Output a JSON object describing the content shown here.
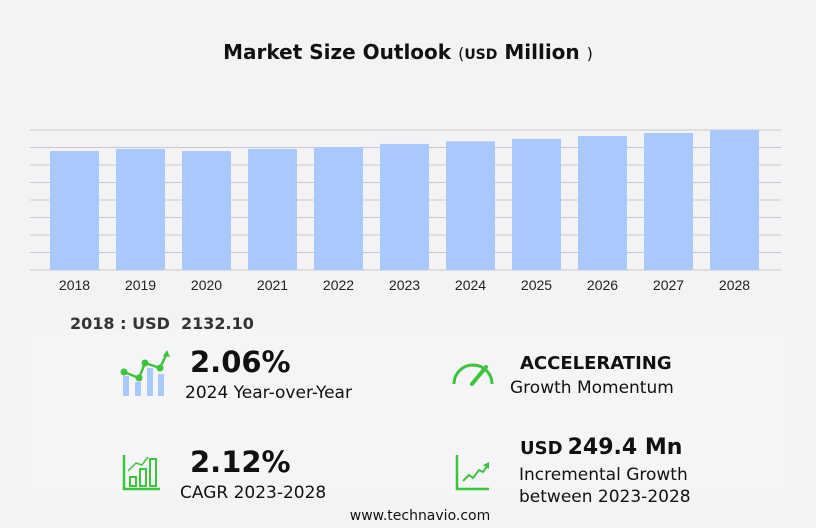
{
  "title": {
    "main": "Market Size Outlook",
    "open": "(",
    "unit": "USD",
    "unit_rest": "Million",
    "close": ")"
  },
  "chart_data": {
    "type": "bar",
    "title": "Market Size Outlook (USD Million)",
    "categories": [
      "2018",
      "2019",
      "2020",
      "2021",
      "2022",
      "2023",
      "2024",
      "2025",
      "2026",
      "2027",
      "2028"
    ],
    "values": [
      2132.1,
      2168,
      2130,
      2168,
      2204,
      2258,
      2305,
      2350,
      2400,
      2455,
      2508
    ],
    "ylim": [
      0,
      2508
    ],
    "grid": true,
    "gridlines": 8,
    "bar_color": "#a8c8fe",
    "grid_color": "#c8c8cc"
  },
  "baseline": {
    "label": "2018 : USD",
    "value": "2132.10"
  },
  "stats": {
    "yoy": {
      "value": "2.06%",
      "label": "2024 Year-over-Year"
    },
    "momentum": {
      "value": "ACCELERATING",
      "label": "Growth Momentum"
    },
    "cagr": {
      "value": "2.12%",
      "label": "CAGR 2023-2028"
    },
    "incremental": {
      "prefix": "USD",
      "value": "249.4 Mn",
      "label1": "Incremental Growth",
      "label2": "between 2023-2028"
    }
  },
  "accent_color": "#3cc43c",
  "footer": "www.technavio.com"
}
